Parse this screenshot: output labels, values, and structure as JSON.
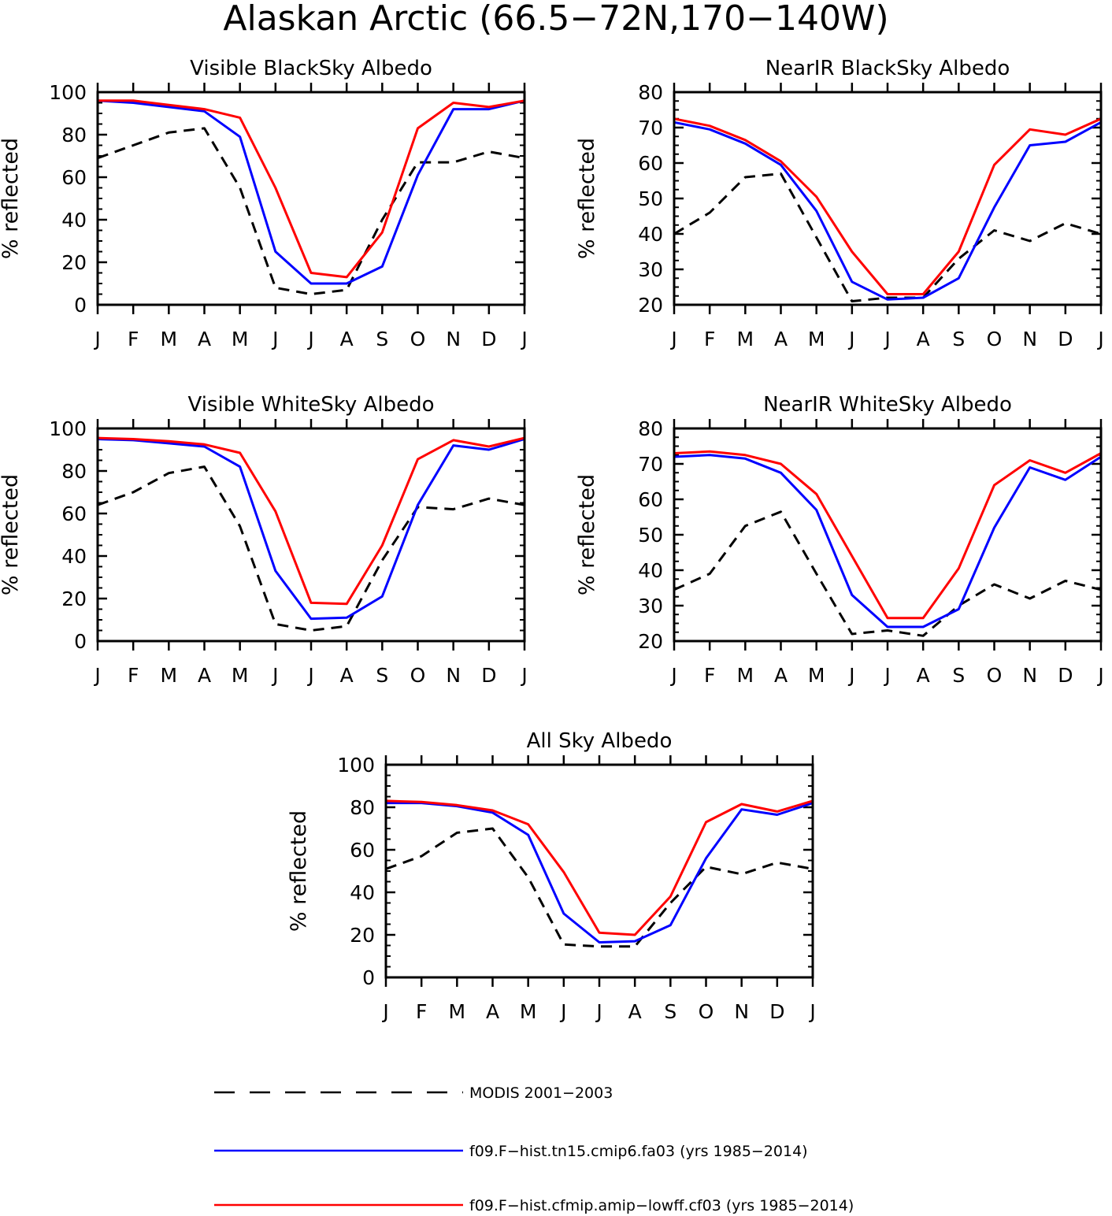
{
  "figure": {
    "title": "Alaskan Arctic (66.5−72N,170−140W)"
  },
  "legend": [
    {
      "label": "MODIS 2001−2003",
      "color": "#000000",
      "style": "dashed"
    },
    {
      "label": "f09.F−hist.tn15.cmip6.fa03 (yrs 1985−2014)",
      "color": "#0000ff",
      "style": "solid"
    },
    {
      "label": "f09.F−hist.cfmip.amip−lowff.cf03 (yrs 1985−2014)",
      "color": "#ff0000",
      "style": "solid"
    }
  ],
  "chart_data": [
    {
      "type": "line",
      "title": "Visible BlackSky Albedo",
      "ylabel": "% reflected",
      "categories": [
        "J",
        "F",
        "M",
        "A",
        "M",
        "J",
        "J",
        "A",
        "S",
        "O",
        "N",
        "D",
        "J"
      ],
      "ylim": [
        0,
        100
      ],
      "yticks": [
        0,
        20,
        40,
        60,
        80,
        100
      ],
      "series": [
        {
          "name": "MODIS 2001−2003",
          "color": "#000000",
          "style": "dashed",
          "values": [
            69,
            75,
            81,
            83,
            55,
            8,
            5,
            7,
            40,
            67,
            67,
            72,
            69
          ]
        },
        {
          "name": "f09.F−hist.tn15.cmip6.fa03 (yrs 1985−2014)",
          "color": "#0000ff",
          "style": "solid",
          "values": [
            96,
            95,
            93,
            91,
            79,
            25,
            10,
            10,
            18,
            61,
            92,
            92,
            96
          ]
        },
        {
          "name": "f09.F−hist.cfmip.amip−lowff.cf03 (yrs 1985−2014)",
          "color": "#ff0000",
          "style": "solid",
          "values": [
            96,
            96,
            94,
            92,
            88,
            55,
            15,
            13,
            34,
            83,
            95,
            93,
            96
          ]
        }
      ]
    },
    {
      "type": "line",
      "title": "NearIR BlackSky Albedo",
      "ylabel": "% reflected",
      "categories": [
        "J",
        "F",
        "M",
        "A",
        "M",
        "J",
        "J",
        "A",
        "S",
        "O",
        "N",
        "D",
        "J"
      ],
      "ylim": [
        20,
        80
      ],
      "yticks": [
        20,
        30,
        40,
        50,
        60,
        70,
        80
      ],
      "series": [
        {
          "name": "MODIS 2001−2003",
          "color": "#000000",
          "style": "dashed",
          "values": [
            40,
            46,
            56,
            57,
            39,
            21,
            22,
            22,
            33,
            41,
            38,
            43,
            40
          ]
        },
        {
          "name": "f09.F−hist.tn15.cmip6.fa03 (yrs 1985−2014)",
          "color": "#0000ff",
          "style": "solid",
          "values": [
            71.5,
            69.5,
            65.5,
            59.5,
            46.5,
            26.5,
            21.5,
            22,
            27.5,
            47.5,
            65,
            66,
            71.5
          ]
        },
        {
          "name": "f09.F−hist.cfmip.amip−lowff.cf03 (yrs 1985−2014)",
          "color": "#ff0000",
          "style": "solid",
          "values": [
            72.5,
            70.5,
            66.5,
            60.5,
            50.5,
            35,
            23,
            23,
            35,
            59.5,
            69.5,
            68,
            72.5
          ]
        }
      ]
    },
    {
      "type": "line",
      "title": "Visible WhiteSky Albedo",
      "ylabel": "% reflected",
      "categories": [
        "J",
        "F",
        "M",
        "A",
        "M",
        "J",
        "J",
        "A",
        "S",
        "O",
        "N",
        "D",
        "J"
      ],
      "ylim": [
        0,
        100
      ],
      "yticks": [
        0,
        20,
        40,
        60,
        80,
        100
      ],
      "series": [
        {
          "name": "MODIS 2001−2003",
          "color": "#000000",
          "style": "dashed",
          "values": [
            64,
            70,
            79,
            82,
            54,
            8,
            5,
            7,
            38,
            63,
            62,
            67,
            64
          ]
        },
        {
          "name": "f09.F−hist.tn15.cmip6.fa03 (yrs 1985−2014)",
          "color": "#0000ff",
          "style": "solid",
          "values": [
            95,
            94.5,
            93,
            91.5,
            82,
            33,
            10.5,
            11,
            21,
            64,
            92,
            90,
            95
          ]
        },
        {
          "name": "f09.F−hist.cfmip.amip−lowff.cf03 (yrs 1985−2014)",
          "color": "#ff0000",
          "style": "solid",
          "values": [
            95.5,
            95,
            94,
            92.5,
            88.5,
            61,
            18,
            17.5,
            45,
            85.5,
            94.5,
            91.5,
            95.5
          ]
        }
      ]
    },
    {
      "type": "line",
      "title": "NearIR WhiteSky Albedo",
      "ylabel": "% reflected",
      "categories": [
        "J",
        "F",
        "M",
        "A",
        "M",
        "J",
        "J",
        "A",
        "S",
        "O",
        "N",
        "D",
        "J"
      ],
      "ylim": [
        20,
        80
      ],
      "yticks": [
        20,
        30,
        40,
        50,
        60,
        70,
        80
      ],
      "series": [
        {
          "name": "MODIS 2001−2003",
          "color": "#000000",
          "style": "dashed",
          "values": [
            34.5,
            39,
            52.5,
            56.5,
            39,
            22,
            23,
            21.5,
            30,
            36,
            32,
            37,
            34.5
          ]
        },
        {
          "name": "f09.F−hist.tn15.cmip6.fa03 (yrs 1985−2014)",
          "color": "#0000ff",
          "style": "solid",
          "values": [
            72,
            72.5,
            71.5,
            67.5,
            57,
            33,
            24,
            24,
            29,
            52,
            69,
            65.5,
            72
          ]
        },
        {
          "name": "f09.F−hist.cfmip.amip−lowff.cf03 (yrs 1985−2014)",
          "color": "#ff0000",
          "style": "solid",
          "values": [
            73,
            73.5,
            72.5,
            70,
            61.5,
            44,
            26.5,
            26.5,
            40.5,
            64,
            71,
            67.5,
            73
          ]
        }
      ]
    },
    {
      "type": "line",
      "title": "All Sky Albedo",
      "ylabel": "% reflected",
      "categories": [
        "J",
        "F",
        "M",
        "A",
        "M",
        "J",
        "J",
        "A",
        "S",
        "O",
        "N",
        "D",
        "J"
      ],
      "ylim": [
        0,
        100
      ],
      "yticks": [
        0,
        20,
        40,
        60,
        80,
        100
      ],
      "series": [
        {
          "name": "MODIS 2001−2003",
          "color": "#000000",
          "style": "dashed",
          "values": [
            51,
            57,
            68,
            70,
            47,
            15.5,
            14.5,
            14.5,
            35,
            52,
            48.5,
            54,
            51
          ]
        },
        {
          "name": "f09.F−hist.tn15.cmip6.fa03 (yrs 1985−2014)",
          "color": "#0000ff",
          "style": "solid",
          "values": [
            82,
            82,
            80.5,
            77.5,
            67,
            30,
            16.5,
            17,
            24.5,
            56,
            79,
            76.5,
            82
          ]
        },
        {
          "name": "f09.F−hist.cfmip.amip−lowff.cf03 (yrs 1985−2014)",
          "color": "#ff0000",
          "style": "solid",
          "values": [
            83,
            82.5,
            81,
            78.5,
            72,
            49.5,
            21,
            20,
            38,
            73,
            81.5,
            78,
            83
          ]
        }
      ]
    }
  ]
}
